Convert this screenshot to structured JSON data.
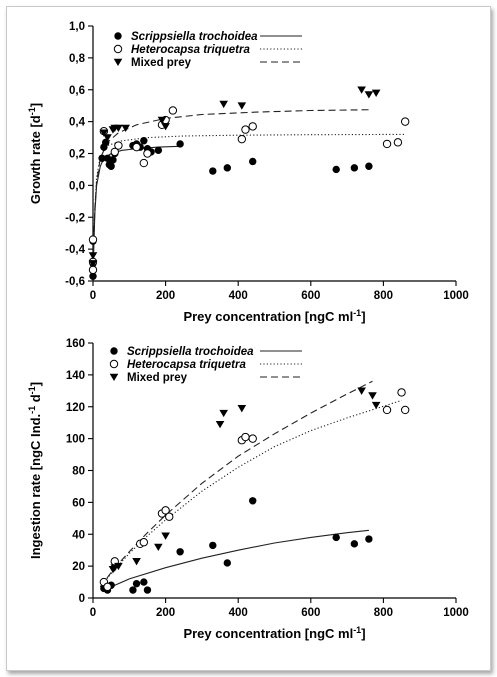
{
  "chart_data": [
    {
      "type": "scatter",
      "xlabel_main": "Prey concentration [ngC ml",
      "xlabel_sup": "-1",
      "xlabel_end": "]",
      "ylabel_main": "Growth rate [d",
      "ylabel_sup": "-1",
      "ylabel_end": "]",
      "xlim": [
        0,
        1000
      ],
      "ylim": [
        -0.6,
        1.0
      ],
      "x_ticks": [
        0,
        200,
        400,
        600,
        800,
        1000
      ],
      "y_ticks": [
        -0.6,
        -0.4,
        -0.2,
        0.0,
        0.2,
        0.4,
        0.6,
        0.8,
        1.0
      ],
      "y_tick_labels": [
        "-0,6",
        "-0,4",
        "-0,2",
        "0,0",
        "0,2",
        "0,4",
        "0,6",
        "0,8",
        "1,0"
      ],
      "x_tick_labels": [
        "0",
        "200",
        "400",
        "600",
        "800",
        "1000"
      ],
      "legend_position": "top-left",
      "series": [
        {
          "name": "Scrippsiella trochoidea",
          "marker": "filled-circle",
          "line": "solid",
          "points": [
            [
              0,
              -0.57
            ],
            [
              0,
              -0.49
            ],
            [
              0,
              -0.35
            ],
            [
              25,
              0.17
            ],
            [
              30,
              0.24
            ],
            [
              35,
              0.27
            ],
            [
              40,
              0.17
            ],
            [
              45,
              0.13
            ],
            [
              50,
              0.12
            ],
            [
              55,
              0.16
            ],
            [
              60,
              0.2
            ],
            [
              110,
              0.25
            ],
            [
              120,
              0.26
            ],
            [
              130,
              0.24
            ],
            [
              140,
              0.28
            ],
            [
              150,
              0.23
            ],
            [
              160,
              0.21
            ],
            [
              180,
              0.22
            ],
            [
              240,
              0.26
            ],
            [
              330,
              0.09
            ],
            [
              370,
              0.11
            ],
            [
              440,
              0.15
            ],
            [
              670,
              0.1
            ],
            [
              720,
              0.11
            ],
            [
              760,
              0.12
            ]
          ],
          "curve": [
            [
              0,
              -0.55
            ],
            [
              5,
              -0.18
            ],
            [
              10,
              0.0
            ],
            [
              20,
              0.12
            ],
            [
              30,
              0.17
            ],
            [
              50,
              0.2
            ],
            [
              80,
              0.22
            ],
            [
              120,
              0.23
            ],
            [
              180,
              0.24
            ],
            [
              240,
              0.245
            ]
          ]
        },
        {
          "name": "Heterocapsa triquetra",
          "marker": "open-circle",
          "line": "dotted",
          "points": [
            [
              0,
              -0.53
            ],
            [
              0,
              -0.48
            ],
            [
              0,
              -0.34
            ],
            [
              30,
              0.34
            ],
            [
              60,
              0.21
            ],
            [
              70,
              0.25
            ],
            [
              120,
              0.24
            ],
            [
              140,
              0.14
            ],
            [
              150,
              0.2
            ],
            [
              190,
              0.38
            ],
            [
              200,
              0.41
            ],
            [
              220,
              0.47
            ],
            [
              410,
              0.29
            ],
            [
              420,
              0.35
            ],
            [
              440,
              0.37
            ],
            [
              810,
              0.26
            ],
            [
              840,
              0.27
            ],
            [
              860,
              0.4
            ]
          ],
          "curve": [
            [
              0,
              -0.52
            ],
            [
              5,
              -0.15
            ],
            [
              10,
              0.05
            ],
            [
              20,
              0.18
            ],
            [
              40,
              0.25
            ],
            [
              80,
              0.28
            ],
            [
              150,
              0.3
            ],
            [
              250,
              0.31
            ],
            [
              400,
              0.315
            ],
            [
              600,
              0.318
            ],
            [
              860,
              0.32
            ]
          ]
        },
        {
          "name": "Mixed prey",
          "marker": "filled-triangle-down",
          "line": "dashed",
          "points": [
            [
              0,
              -0.44
            ],
            [
              0,
              -0.49
            ],
            [
              30,
              0.33
            ],
            [
              40,
              0.3
            ],
            [
              55,
              0.35
            ],
            [
              60,
              0.36
            ],
            [
              70,
              0.36
            ],
            [
              90,
              0.36
            ],
            [
              190,
              0.41
            ],
            [
              200,
              0.37
            ],
            [
              360,
              0.51
            ],
            [
              410,
              0.5
            ],
            [
              740,
              0.6
            ],
            [
              760,
              0.57
            ],
            [
              780,
              0.58
            ]
          ],
          "curve": [
            [
              0,
              -0.5
            ],
            [
              5,
              -0.15
            ],
            [
              10,
              0.02
            ],
            [
              20,
              0.17
            ],
            [
              40,
              0.27
            ],
            [
              70,
              0.33
            ],
            [
              120,
              0.38
            ],
            [
              200,
              0.42
            ],
            [
              300,
              0.445
            ],
            [
              450,
              0.46
            ],
            [
              600,
              0.47
            ],
            [
              770,
              0.475
            ]
          ]
        }
      ]
    },
    {
      "type": "scatter",
      "xlabel_main": "Prey concentration [ngC ml",
      "xlabel_sup": "-1",
      "xlabel_end": "]",
      "ylabel_main": "Ingestion rate [ngC Ind.",
      "ylabel_sup1": "-1",
      "ylabel_mid": " d",
      "ylabel_sup2": "-1",
      "ylabel_end": "]",
      "xlim": [
        0,
        1000
      ],
      "ylim": [
        0,
        160
      ],
      "x_ticks": [
        0,
        200,
        400,
        600,
        800,
        1000
      ],
      "y_ticks": [
        0,
        20,
        40,
        60,
        80,
        100,
        120,
        140,
        160
      ],
      "x_tick_labels": [
        "0",
        "200",
        "400",
        "600",
        "800",
        "1000"
      ],
      "y_tick_labels": [
        "0",
        "20",
        "40",
        "60",
        "80",
        "100",
        "120",
        "140",
        "160"
      ],
      "legend_position": "top-left",
      "series": [
        {
          "name": "Scrippsiella trochoidea",
          "marker": "filled-circle",
          "line": "solid",
          "points": [
            [
              30,
              6
            ],
            [
              40,
              5
            ],
            [
              50,
              8
            ],
            [
              110,
              5
            ],
            [
              120,
              9
            ],
            [
              140,
              10
            ],
            [
              150,
              5
            ],
            [
              240,
              29
            ],
            [
              330,
              33
            ],
            [
              370,
              22
            ],
            [
              440,
              61
            ],
            [
              670,
              38
            ],
            [
              720,
              34
            ],
            [
              760,
              37
            ]
          ],
          "curve": [
            [
              30,
              5
            ],
            [
              100,
              12
            ],
            [
              200,
              19
            ],
            [
              300,
              25
            ],
            [
              400,
              30
            ],
            [
              500,
              34.5
            ],
            [
              600,
              38
            ],
            [
              700,
              41
            ],
            [
              760,
              42.5
            ]
          ]
        },
        {
          "name": "Heterocapsa triquetra",
          "marker": "open-circle",
          "line": "dotted",
          "points": [
            [
              30,
              10
            ],
            [
              40,
              7
            ],
            [
              60,
              23
            ],
            [
              130,
              34
            ],
            [
              140,
              35
            ],
            [
              190,
              53
            ],
            [
              200,
              55
            ],
            [
              210,
              51
            ],
            [
              410,
              99
            ],
            [
              420,
              101
            ],
            [
              440,
              100
            ],
            [
              810,
              118
            ],
            [
              850,
              129
            ],
            [
              860,
              118
            ]
          ],
          "curve": [
            [
              20,
              7
            ],
            [
              60,
              18
            ],
            [
              100,
              28
            ],
            [
              150,
              39
            ],
            [
              200,
              49
            ],
            [
              300,
              67
            ],
            [
              400,
              82
            ],
            [
              500,
              95
            ],
            [
              600,
              105
            ],
            [
              700,
              113
            ],
            [
              850,
              124
            ]
          ]
        },
        {
          "name": "Mixed prey",
          "marker": "filled-triangle-down",
          "line": "dashed",
          "points": [
            [
              55,
              18
            ],
            [
              60,
              19
            ],
            [
              70,
              20
            ],
            [
              120,
              23
            ],
            [
              180,
              32
            ],
            [
              200,
              39
            ],
            [
              350,
              109
            ],
            [
              360,
              116
            ],
            [
              410,
              119
            ],
            [
              740,
              130
            ],
            [
              770,
              127
            ],
            [
              780,
              121
            ]
          ],
          "curve": [
            [
              20,
              7
            ],
            [
              60,
              19
            ],
            [
              100,
              29
            ],
            [
              150,
              41
            ],
            [
              200,
              52
            ],
            [
              300,
              72
            ],
            [
              400,
              89
            ],
            [
              500,
              103
            ],
            [
              600,
              116
            ],
            [
              700,
              128
            ],
            [
              770,
              136
            ]
          ]
        }
      ]
    }
  ]
}
